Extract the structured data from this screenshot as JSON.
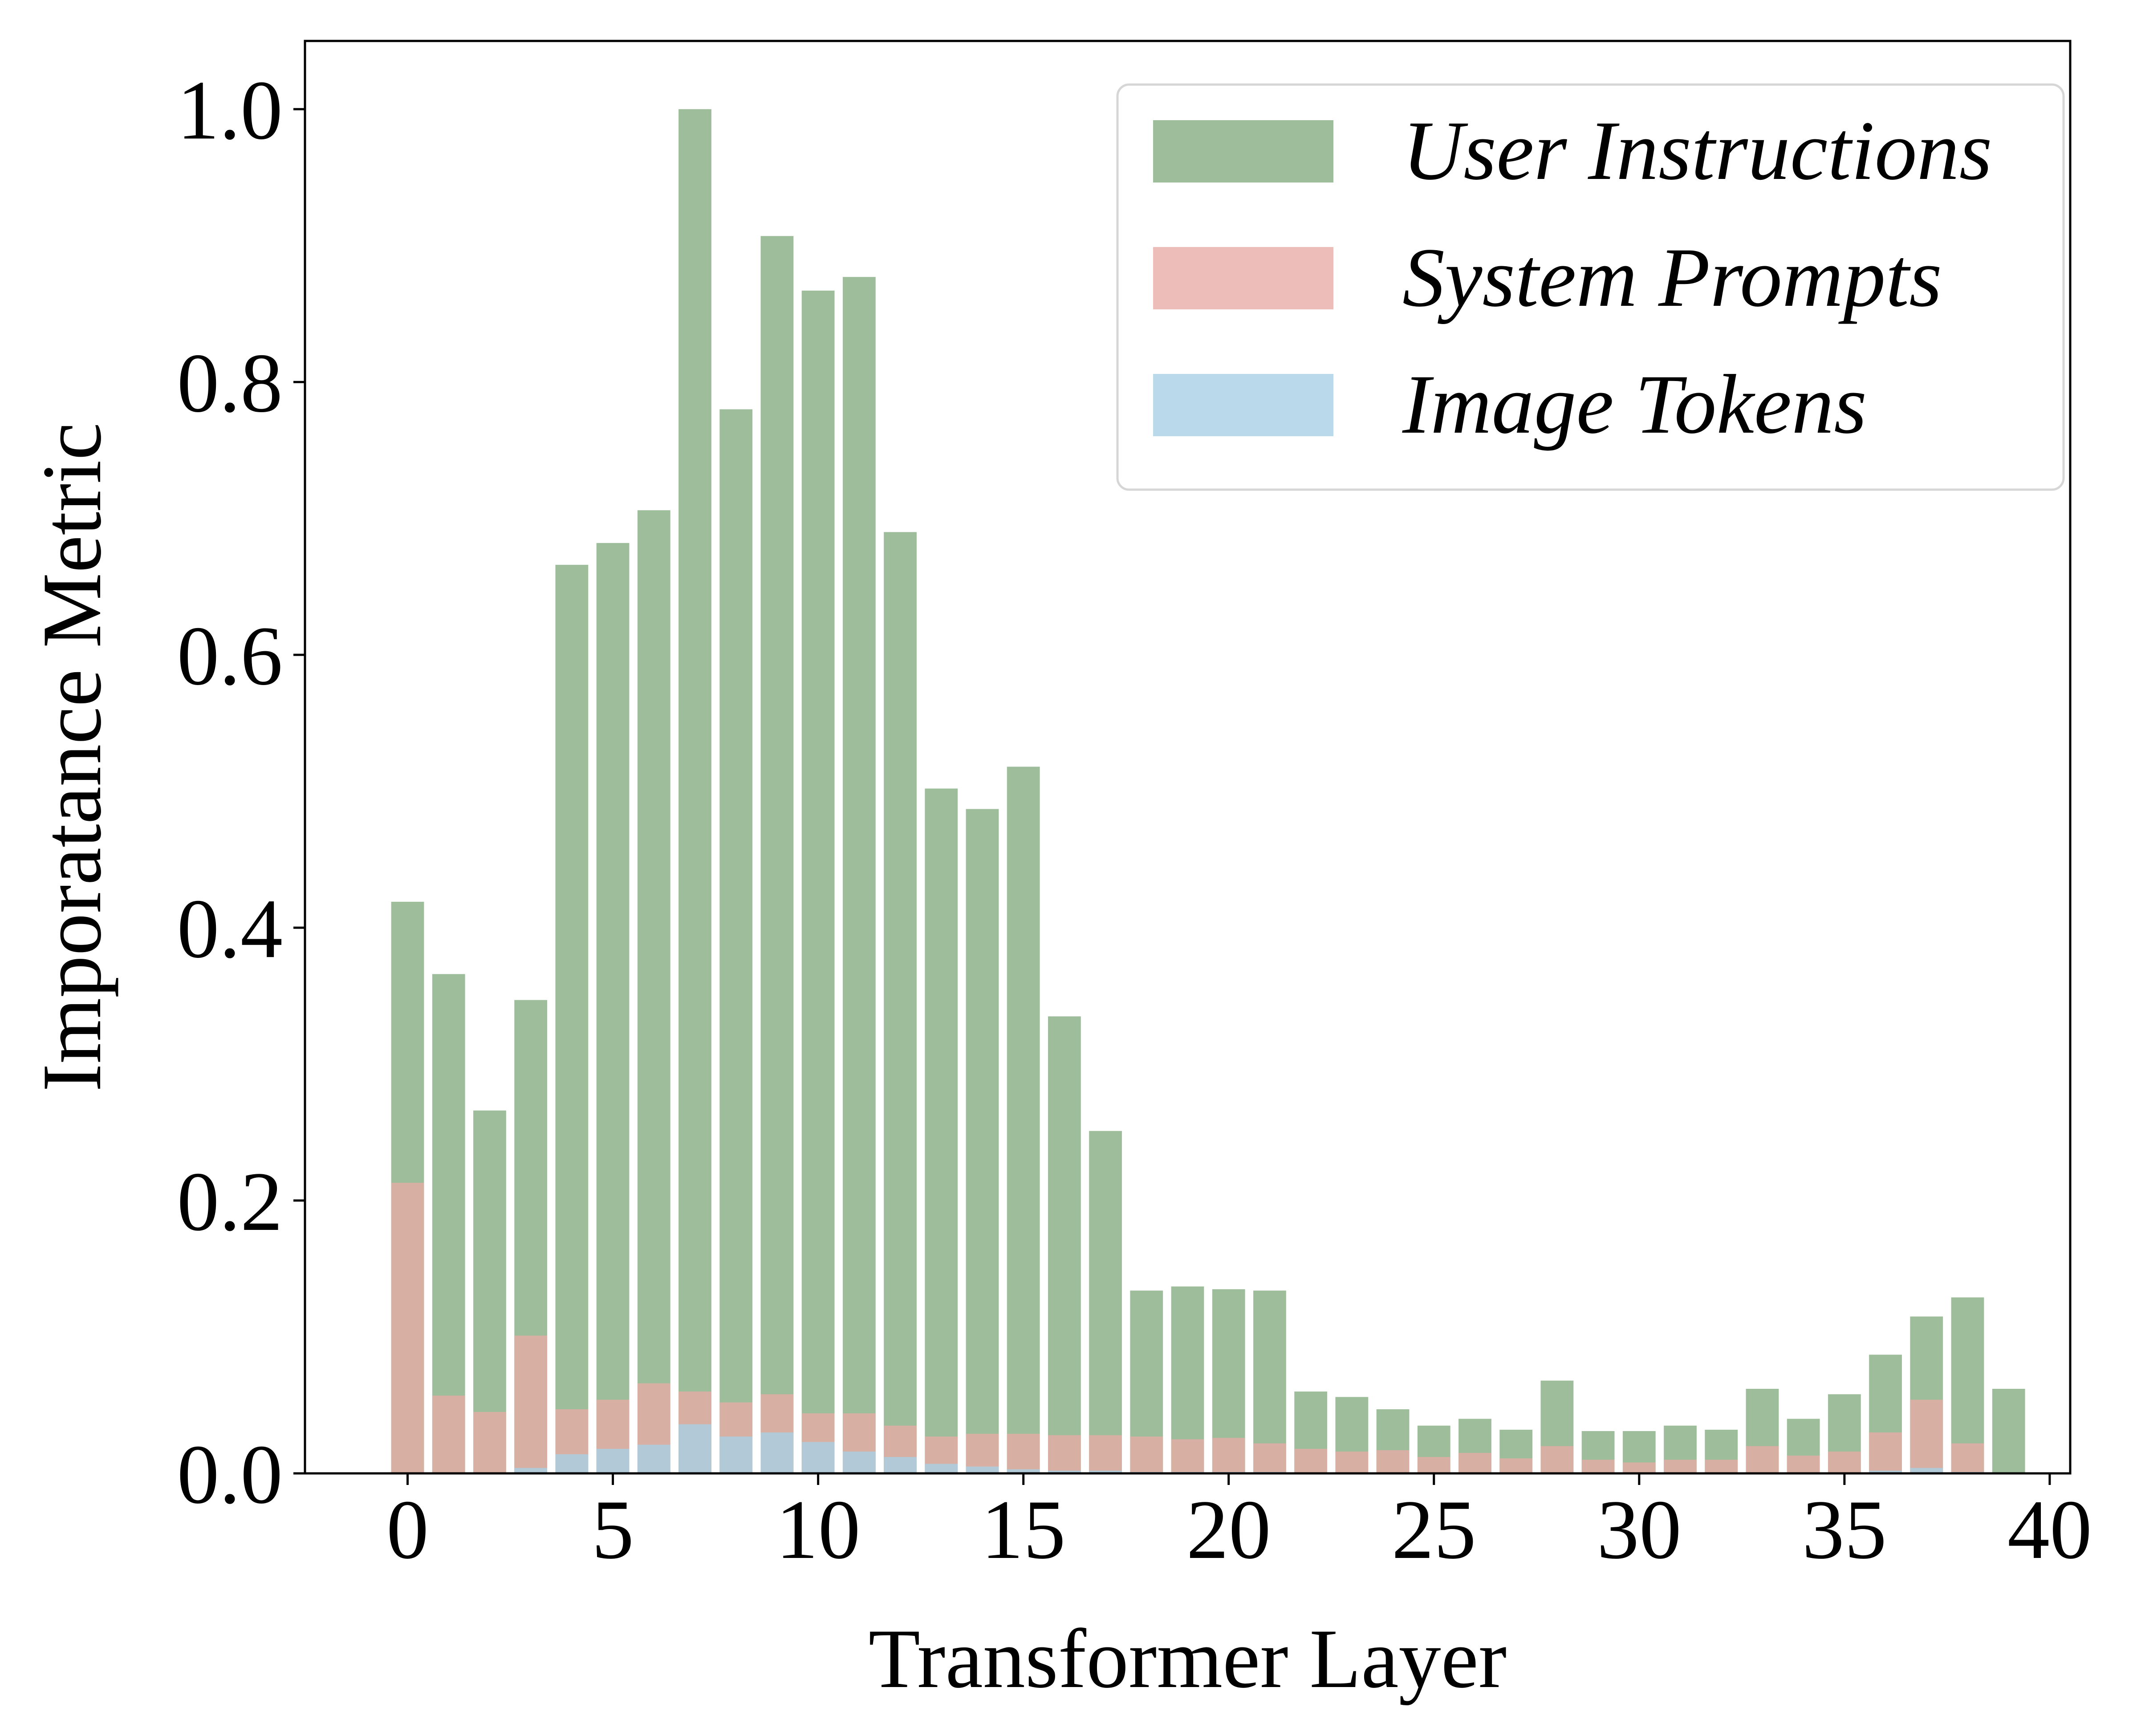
{
  "chart_data": {
    "type": "bar",
    "xlabel": "Transformer Layer",
    "ylabel": "Imporatance Metric",
    "xlim": [
      -2.5,
      40.5
    ],
    "ylim": [
      0,
      1.05
    ],
    "xticks": [
      "0",
      "5",
      "10",
      "15",
      "20",
      "25",
      "30",
      "35",
      "40"
    ],
    "yticks": [
      "0.0",
      "0.2",
      "0.4",
      "0.6",
      "0.8",
      "1.0"
    ],
    "grid": false,
    "legend_position": "top-right",
    "x": [
      0,
      1,
      2,
      3,
      4,
      5,
      6,
      7,
      8,
      9,
      10,
      11,
      12,
      13,
      14,
      15,
      16,
      17,
      18,
      19,
      20,
      21,
      22,
      23,
      24,
      25,
      26,
      27,
      28,
      29,
      30,
      31,
      32,
      33,
      34,
      35,
      36,
      37,
      38,
      39
    ],
    "series": [
      {
        "name": "User Instructions",
        "color": "#8db28a",
        "opacity": 0.85,
        "values": [
          0.419,
          0.366,
          0.266,
          0.347,
          0.666,
          0.682,
          0.706,
          1.0,
          0.78,
          0.907,
          0.867,
          0.877,
          0.69,
          0.502,
          0.487,
          0.518,
          0.335,
          0.251,
          0.134,
          0.137,
          0.135,
          0.134,
          0.06,
          0.056,
          0.047,
          0.035,
          0.04,
          0.032,
          0.068,
          0.031,
          0.031,
          0.035,
          0.032,
          0.062,
          0.04,
          0.058,
          0.087,
          0.115,
          0.129,
          0.062
        ]
      },
      {
        "name": "System Prompts",
        "color": "#e8aca5",
        "opacity": 0.78,
        "values": [
          0.213,
          0.057,
          0.045,
          0.101,
          0.047,
          0.054,
          0.066,
          0.06,
          0.052,
          0.058,
          0.044,
          0.044,
          0.035,
          0.027,
          0.029,
          0.029,
          0.028,
          0.028,
          0.027,
          0.025,
          0.026,
          0.022,
          0.018,
          0.016,
          0.017,
          0.012,
          0.015,
          0.011,
          0.02,
          0.01,
          0.008,
          0.01,
          0.01,
          0.02,
          0.013,
          0.016,
          0.03,
          0.054,
          0.022,
          0.0
        ]
      },
      {
        "name": "Image Tokens",
        "color": "#a6d0e6",
        "opacity": 0.78,
        "values": [
          0.0,
          0.0,
          0.0,
          0.004,
          0.014,
          0.018,
          0.021,
          0.036,
          0.027,
          0.03,
          0.023,
          0.016,
          0.012,
          0.007,
          0.005,
          0.003,
          0.002,
          0.002,
          0.001,
          0.001,
          0.001,
          0.001,
          0.0,
          0.0,
          0.0,
          0.0,
          0.0,
          0.0,
          0.0,
          0.0,
          0.0,
          0.0,
          0.0,
          0.0,
          0.0,
          0.0,
          0.002,
          0.004,
          0.001,
          0.0
        ]
      }
    ]
  }
}
